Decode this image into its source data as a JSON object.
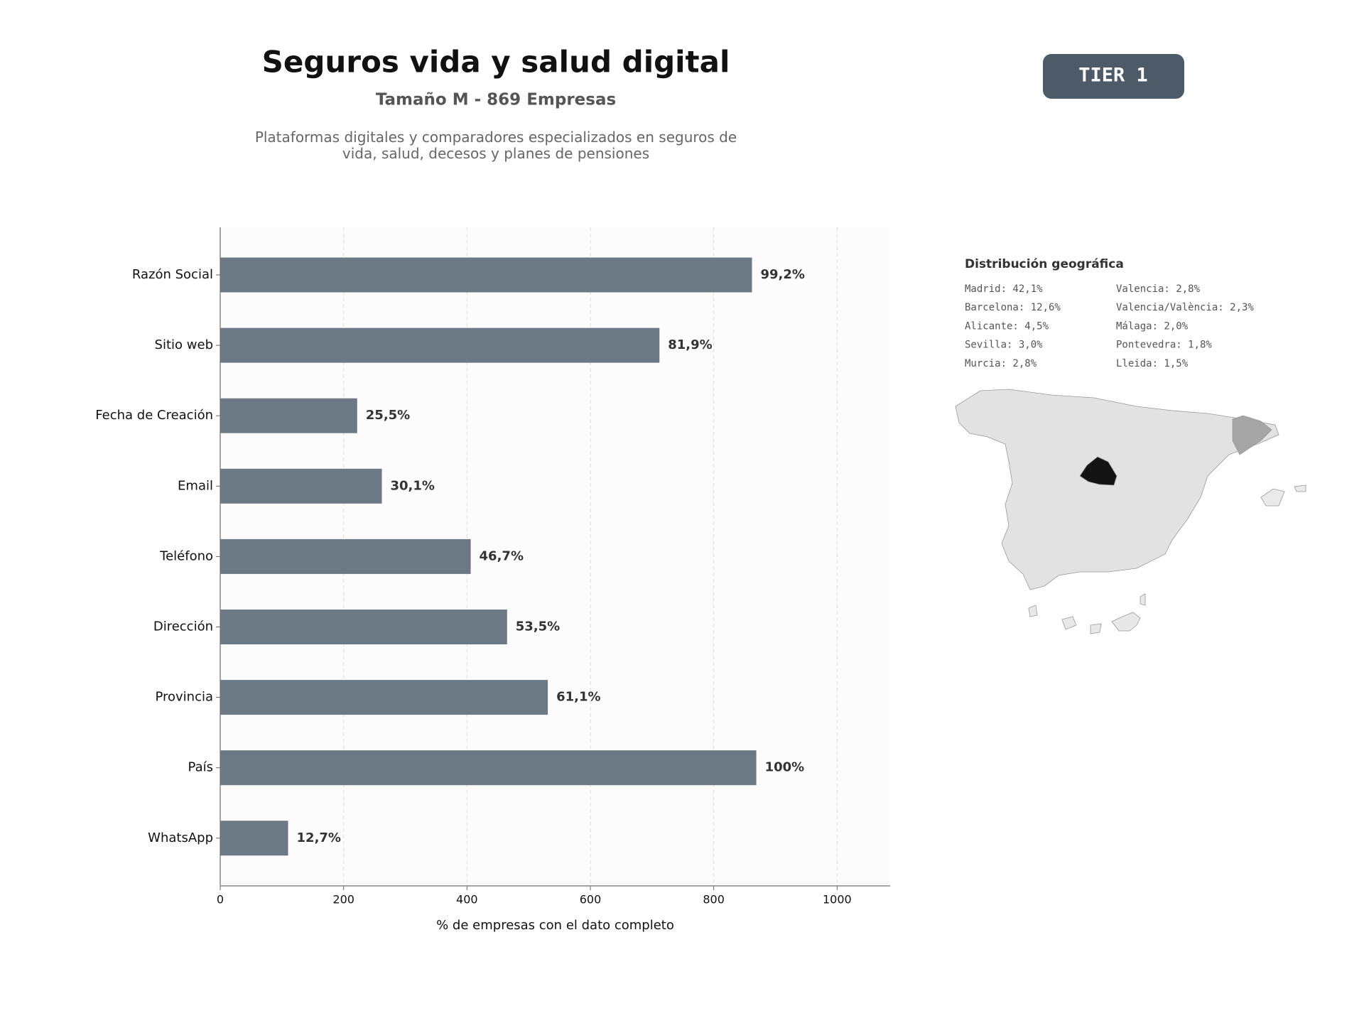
{
  "chart_data": {
    "type": "barh",
    "title": "Seguros vida y salud digital",
    "subtitle": "Tamaño M - 869 Empresas",
    "description": "Plataformas digitales y comparadores especializados en seguros de vida, salud, decesos y planes de pensiones",
    "xlabel": "% de empresas con el dato completo",
    "categories": [
      "Razón Social",
      "Sitio web",
      "Fecha de Creación",
      "Email",
      "Teléfono",
      "Dirección",
      "Provincia",
      "País",
      "WhatsApp"
    ],
    "values": [
      862,
      712,
      222,
      262,
      406,
      465,
      531,
      869,
      110
    ],
    "value_labels": [
      "99,2%",
      "81,9%",
      "25,5%",
      "30,1%",
      "46,7%",
      "53,5%",
      "61,1%",
      "100%",
      "12,7%"
    ],
    "color": "#6c7883",
    "xlim": [
      0,
      1086
    ],
    "xticks": [
      0,
      200,
      400,
      600,
      800,
      1000
    ],
    "grid": true
  },
  "badge": "TIER 1",
  "geo": {
    "title": "Distribución geográfica",
    "columns": [
      [
        "Madrid: 42,1%",
        "Barcelona: 12,6%",
        "Alicante: 4,5%",
        "Sevilla: 3,0%",
        "Murcia: 2,8%"
      ],
      [
        "Valencia: 2,8%",
        "Valencia/València: 2,3%",
        "Málaga: 2,0%",
        "Pontevedra: 1,8%",
        "Lleida: 1,5%"
      ]
    ]
  }
}
